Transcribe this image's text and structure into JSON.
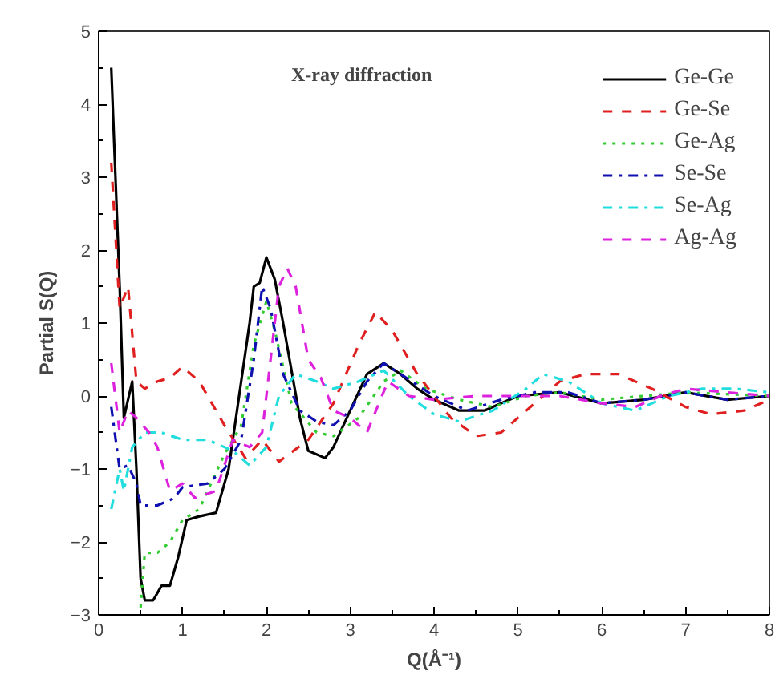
{
  "chart_data": {
    "type": "line",
    "xlabel": "Q(Å⁻¹)",
    "ylabel": "Partial S(Q)",
    "annotations": [
      "X-ray diffraction"
    ],
    "xlim": [
      0,
      8
    ],
    "ylim": [
      -3,
      5
    ],
    "xticks": [
      0,
      1,
      2,
      3,
      4,
      5,
      6,
      7,
      8
    ],
    "yticks": [
      -3,
      -2,
      -1,
      0,
      1,
      2,
      3,
      4,
      5
    ],
    "grid": false,
    "legend": "top right",
    "series": [
      {
        "name": "Ge-Ge",
        "color": "#000000",
        "line_style": "solid",
        "x": [
          0.15,
          0.25,
          0.3,
          0.4,
          0.45,
          0.5,
          0.55,
          0.65,
          0.75,
          0.85,
          0.95,
          1.05,
          1.2,
          1.4,
          1.55,
          1.7,
          1.8,
          1.85,
          1.92,
          2.0,
          2.1,
          2.2,
          2.4,
          2.5,
          2.7,
          2.8,
          3.0,
          3.2,
          3.4,
          3.6,
          3.8,
          4.0,
          4.3,
          4.6,
          5.0,
          5.5,
          6.0,
          6.5,
          7.0,
          7.5,
          8.0
        ],
        "values": [
          4.5,
          1.5,
          -0.3,
          0.2,
          -1.0,
          -2.5,
          -2.8,
          -2.8,
          -2.6,
          -2.6,
          -2.2,
          -1.7,
          -1.65,
          -1.6,
          -1.0,
          0.2,
          1.0,
          1.5,
          1.55,
          1.9,
          1.6,
          1.0,
          -0.3,
          -0.75,
          -0.85,
          -0.7,
          -0.2,
          0.3,
          0.45,
          0.3,
          0.1,
          -0.05,
          -0.2,
          -0.2,
          0.0,
          0.05,
          -0.1,
          -0.05,
          0.05,
          -0.05,
          0.0
        ]
      },
      {
        "name": "Ge-Se",
        "color": "#e02020",
        "line_style": "dashed",
        "x": [
          0.15,
          0.25,
          0.35,
          0.45,
          0.55,
          0.7,
          0.85,
          1.0,
          1.2,
          1.5,
          1.75,
          1.95,
          2.15,
          2.5,
          2.8,
          3.1,
          3.3,
          3.5,
          3.8,
          4.2,
          4.5,
          4.8,
          5.2,
          5.5,
          5.8,
          6.2,
          6.6,
          7.0,
          7.3,
          7.7,
          8.0
        ],
        "values": [
          3.2,
          1.2,
          1.5,
          0.2,
          0.1,
          0.2,
          0.25,
          0.4,
          0.2,
          -0.4,
          -0.85,
          -0.6,
          -0.9,
          -0.6,
          -0.1,
          0.7,
          1.15,
          0.9,
          0.3,
          -0.3,
          -0.55,
          -0.5,
          -0.1,
          0.2,
          0.3,
          0.3,
          0.1,
          -0.15,
          -0.25,
          -0.2,
          -0.05
        ]
      },
      {
        "name": "Ge-Ag",
        "color": "#33cc33",
        "line_style": "dotted",
        "x": [
          0.5,
          0.55,
          0.7,
          0.85,
          1.0,
          1.2,
          1.5,
          1.7,
          1.85,
          2.0,
          2.1,
          2.3,
          2.6,
          2.8,
          3.1,
          3.4,
          3.6,
          3.9,
          4.3,
          4.7,
          5.1,
          5.5,
          6.0,
          6.5,
          7.0,
          8.0
        ],
        "values": [
          -2.9,
          -2.15,
          -2.15,
          -2.0,
          -1.7,
          -1.55,
          -0.8,
          -0.4,
          0.7,
          1.3,
          0.9,
          -0.1,
          -0.5,
          -0.55,
          -0.3,
          0.2,
          0.35,
          0.1,
          -0.05,
          -0.15,
          0.0,
          0.05,
          -0.05,
          0.0,
          0.05,
          0.0
        ]
      },
      {
        "name": "Se-Se",
        "color": "#1010b0",
        "line_style": "dashdot",
        "x": [
          0.15,
          0.25,
          0.35,
          0.45,
          0.5,
          0.7,
          0.9,
          1.0,
          1.3,
          1.5,
          1.7,
          1.85,
          1.95,
          2.05,
          2.2,
          2.4,
          2.6,
          2.8,
          3.0,
          3.2,
          3.4,
          3.6,
          4.0,
          4.4,
          4.8,
          5.2,
          5.6,
          6.0,
          6.5,
          7.0,
          7.5,
          8.0
        ],
        "values": [
          -0.15,
          -1.0,
          -0.95,
          -1.2,
          -1.5,
          -1.5,
          -1.4,
          -1.25,
          -1.2,
          -1.0,
          -0.6,
          0.5,
          1.5,
          1.2,
          0.3,
          -0.2,
          -0.35,
          -0.4,
          -0.2,
          0.2,
          0.45,
          0.3,
          0.0,
          -0.2,
          -0.05,
          0.05,
          0.05,
          -0.1,
          -0.05,
          0.05,
          -0.05,
          0.0
        ]
      },
      {
        "name": "Se-Ag",
        "color": "#22dddd",
        "line_style": "dashdot",
        "x": [
          0.15,
          0.25,
          0.3,
          0.4,
          0.55,
          0.75,
          1.0,
          1.3,
          1.6,
          1.8,
          2.0,
          2.15,
          2.35,
          2.6,
          2.8,
          3.1,
          3.4,
          3.7,
          4.0,
          4.3,
          4.7,
          5.1,
          5.3,
          5.6,
          6.0,
          6.4,
          6.8,
          7.2,
          7.6,
          8.0
        ],
        "values": [
          -1.55,
          -1.0,
          -1.3,
          -0.7,
          -0.5,
          -0.5,
          -0.6,
          -0.6,
          -0.75,
          -0.95,
          -0.7,
          0.0,
          0.3,
          0.2,
          0.1,
          0.2,
          0.35,
          0.0,
          -0.25,
          -0.35,
          -0.2,
          0.1,
          0.3,
          0.2,
          -0.1,
          -0.2,
          0.0,
          0.1,
          0.1,
          0.05
        ]
      },
      {
        "name": "Ag-Ag",
        "color": "#dd22dd",
        "line_style": "dashed",
        "x": [
          0.15,
          0.25,
          0.35,
          0.45,
          0.6,
          0.7,
          0.85,
          1.0,
          1.15,
          1.4,
          1.6,
          1.8,
          1.95,
          2.05,
          2.15,
          2.25,
          2.35,
          2.5,
          2.65,
          2.8,
          3.0,
          3.2,
          3.45,
          3.7,
          4.0,
          4.5,
          5.0,
          5.5,
          6.0,
          6.4,
          6.7,
          7.0,
          7.5,
          8.0
        ],
        "values": [
          0.45,
          -0.5,
          -0.2,
          -0.3,
          -0.5,
          -0.7,
          -1.3,
          -1.2,
          -1.4,
          -1.3,
          -0.6,
          -0.7,
          -0.5,
          0.5,
          1.5,
          1.75,
          1.5,
          0.5,
          0.25,
          -0.2,
          -0.3,
          -0.5,
          0.2,
          0.0,
          -0.05,
          0.0,
          0.0,
          0.0,
          -0.1,
          -0.15,
          0.0,
          0.1,
          0.05,
          0.0
        ]
      }
    ]
  }
}
